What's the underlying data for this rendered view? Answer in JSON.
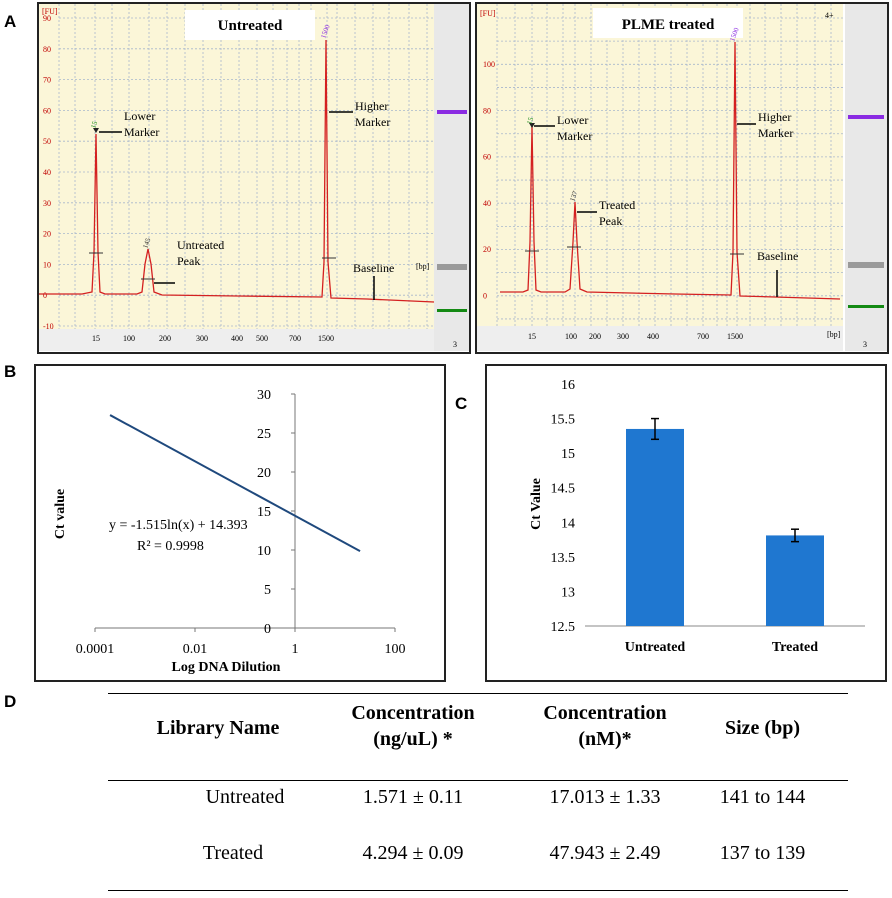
{
  "panel_letters": [
    "A",
    "B",
    "C",
    "D"
  ],
  "panel_a": {
    "left": {
      "title": "Untreated",
      "fu_label": "[FU]",
      "bp_label": "[bp]",
      "lane": "3",
      "y_ticks": [
        "90",
        "80",
        "70",
        "60",
        "50",
        "40",
        "30",
        "20",
        "10",
        "0",
        "-10"
      ],
      "x_ticks": [
        "15",
        "100",
        "200",
        "300",
        "400",
        "500",
        "700",
        "1500"
      ],
      "peak_labels": [
        "15",
        "145",
        "1500"
      ],
      "annotations": {
        "lower_marker": [
          "Lower",
          "Marker"
        ],
        "untreated_peak": [
          "Untreated",
          "Peak"
        ],
        "higher_marker": [
          "Higher",
          "Marker"
        ],
        "baseline": "Baseline"
      }
    },
    "right": {
      "title": "PLME treated",
      "fu_label": "[FU]",
      "bp_label": "[bp]",
      "lane": "3",
      "corner": "4+",
      "y_ticks": [
        "100",
        "80",
        "60",
        "40",
        "20",
        "0"
      ],
      "x_ticks": [
        "15",
        "100",
        "200",
        "300",
        "400",
        "700",
        "1500"
      ],
      "peak_labels": [
        "15",
        "137",
        "1500"
      ],
      "annotations": {
        "lower_marker": [
          "Lower",
          "Marker"
        ],
        "treated_peak": [
          "Treated",
          "Peak"
        ],
        "higher_marker": [
          "Higher",
          "Marker"
        ],
        "baseline": "Baseline"
      }
    }
  },
  "chart_data": [
    {
      "id": "B",
      "type": "line",
      "title": "",
      "xlabel": "Log DNA Dilution",
      "ylabel": "Ct value",
      "x_scale": "log",
      "xlim": [
        0.0001,
        100
      ],
      "ylim": [
        0,
        30
      ],
      "x_tick_labels": [
        "0.0001",
        "0.01",
        "1",
        "100"
      ],
      "y_ticks": [
        0,
        5,
        10,
        15,
        20,
        25,
        30
      ],
      "series": [
        {
          "name": "Standard curve",
          "x": [
            0.0002,
            20
          ],
          "y": [
            27.3,
            9.85
          ],
          "color": "#1f497d"
        }
      ],
      "equation": "y = -1.515ln(x) + 14.393",
      "r_squared": "R² = 0.9998"
    },
    {
      "id": "C",
      "type": "bar",
      "title": "",
      "xlabel": "",
      "ylabel": "Ct Value",
      "categories": [
        "Untreated",
        "Treated"
      ],
      "values": [
        15.35,
        13.81
      ],
      "errors": [
        0.15,
        0.09
      ],
      "ylim": [
        12.5,
        16
      ],
      "y_ticks": [
        "12.5",
        "13",
        "13.5",
        "14",
        "14.5",
        "15",
        "15.5",
        "16"
      ],
      "bar_color": "#1f77d0"
    }
  ],
  "table": {
    "headers": [
      [
        "Library Name"
      ],
      [
        "Concentration",
        "(ng/uL) *"
      ],
      [
        "Concentration",
        "(nM)*"
      ],
      [
        "Size (bp)"
      ]
    ],
    "rows": [
      [
        "Untreated",
        "1.571 ± 0.11",
        "17.013 ± 1.33",
        "141 to 144"
      ],
      [
        "Treated",
        "4.294 ± 0.09",
        "47.943 ± 2.49",
        "137 to 139"
      ]
    ]
  }
}
